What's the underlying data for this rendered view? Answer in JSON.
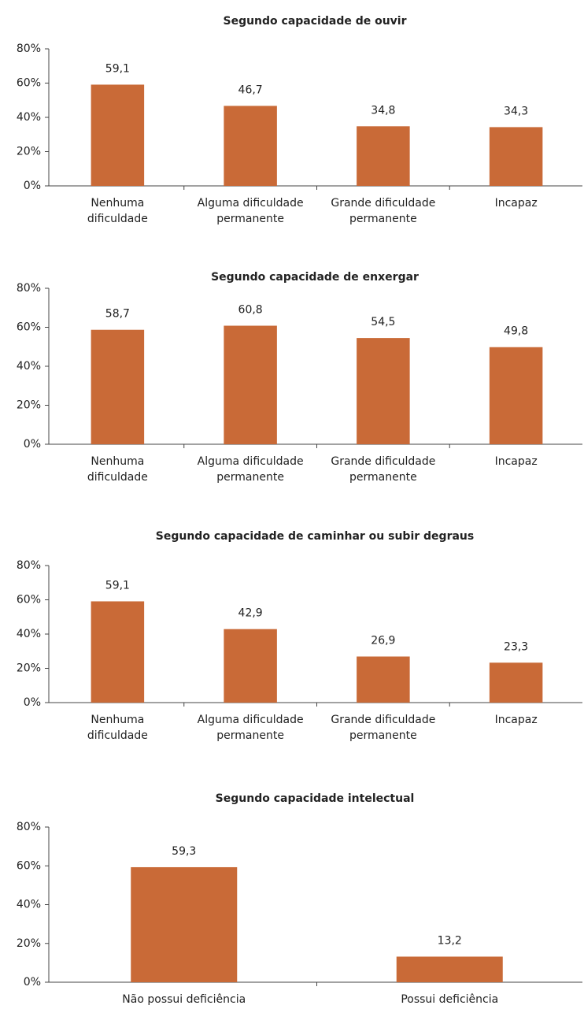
{
  "chart_data": [
    {
      "type": "bar",
      "title": "Segundo capacidade de ouvir",
      "categories": [
        "Nenhuma\ndificuldade",
        "Alguma dificuldade\npermanente",
        "Grande dificuldade\npermanente",
        "Incapaz"
      ],
      "values": [
        59.1,
        46.7,
        34.8,
        34.3
      ],
      "value_labels": [
        "59,1",
        "46,7",
        "34,8",
        "34,3"
      ],
      "color": "#c96a37",
      "ylim": [
        0,
        80
      ],
      "yticks": [
        {
          "value": 0,
          "label": "0%"
        },
        {
          "value": 20,
          "label": "20%"
        },
        {
          "value": 40,
          "label": "40%"
        },
        {
          "value": 60,
          "label": "60%"
        },
        {
          "value": 80,
          "label": "80%"
        }
      ]
    },
    {
      "type": "bar",
      "title": "Segundo capacidade de enxergar",
      "categories": [
        "Nenhuma\ndificuldade",
        "Alguma dificuldade\npermanente",
        "Grande dificuldade\npermanente",
        "Incapaz"
      ],
      "values": [
        58.7,
        60.8,
        54.5,
        49.8
      ],
      "value_labels": [
        "58,7",
        "60,8",
        "54,5",
        "49,8"
      ],
      "color": "#c96a37",
      "ylim": [
        0,
        80
      ],
      "yticks": [
        {
          "value": 0,
          "label": "0%"
        },
        {
          "value": 20,
          "label": "20%"
        },
        {
          "value": 40,
          "label": "40%"
        },
        {
          "value": 60,
          "label": "60%"
        },
        {
          "value": 80,
          "label": "80%"
        }
      ]
    },
    {
      "type": "bar",
      "title": "Segundo capacidade de caminhar ou subir degraus",
      "categories": [
        "Nenhuma\ndificuldade",
        "Alguma dificuldade\npermanente",
        "Grande dificuldade\npermanente",
        "Incapaz"
      ],
      "values": [
        59.1,
        42.9,
        26.9,
        23.3
      ],
      "value_labels": [
        "59,1",
        "42,9",
        "26,9",
        "23,3"
      ],
      "color": "#c96a37",
      "ylim": [
        0,
        80
      ],
      "yticks": [
        {
          "value": 0,
          "label": "0%"
        },
        {
          "value": 20,
          "label": "20%"
        },
        {
          "value": 40,
          "label": "40%"
        },
        {
          "value": 60,
          "label": "60%"
        },
        {
          "value": 80,
          "label": "80%"
        }
      ]
    },
    {
      "type": "bar",
      "title": "Segundo capacidade intelectual",
      "categories": [
        "Não possui deficiência",
        "Possui deficiência"
      ],
      "values": [
        59.3,
        13.2
      ],
      "value_labels": [
        "59,3",
        "13,2"
      ],
      "color": "#c96a37",
      "ylim": [
        0,
        80
      ],
      "yticks": [
        {
          "value": 0,
          "label": "0%"
        },
        {
          "value": 20,
          "label": "20%"
        },
        {
          "value": 40,
          "label": "40%"
        },
        {
          "value": 60,
          "label": "60%"
        },
        {
          "value": 80,
          "label": "80%"
        }
      ]
    }
  ]
}
